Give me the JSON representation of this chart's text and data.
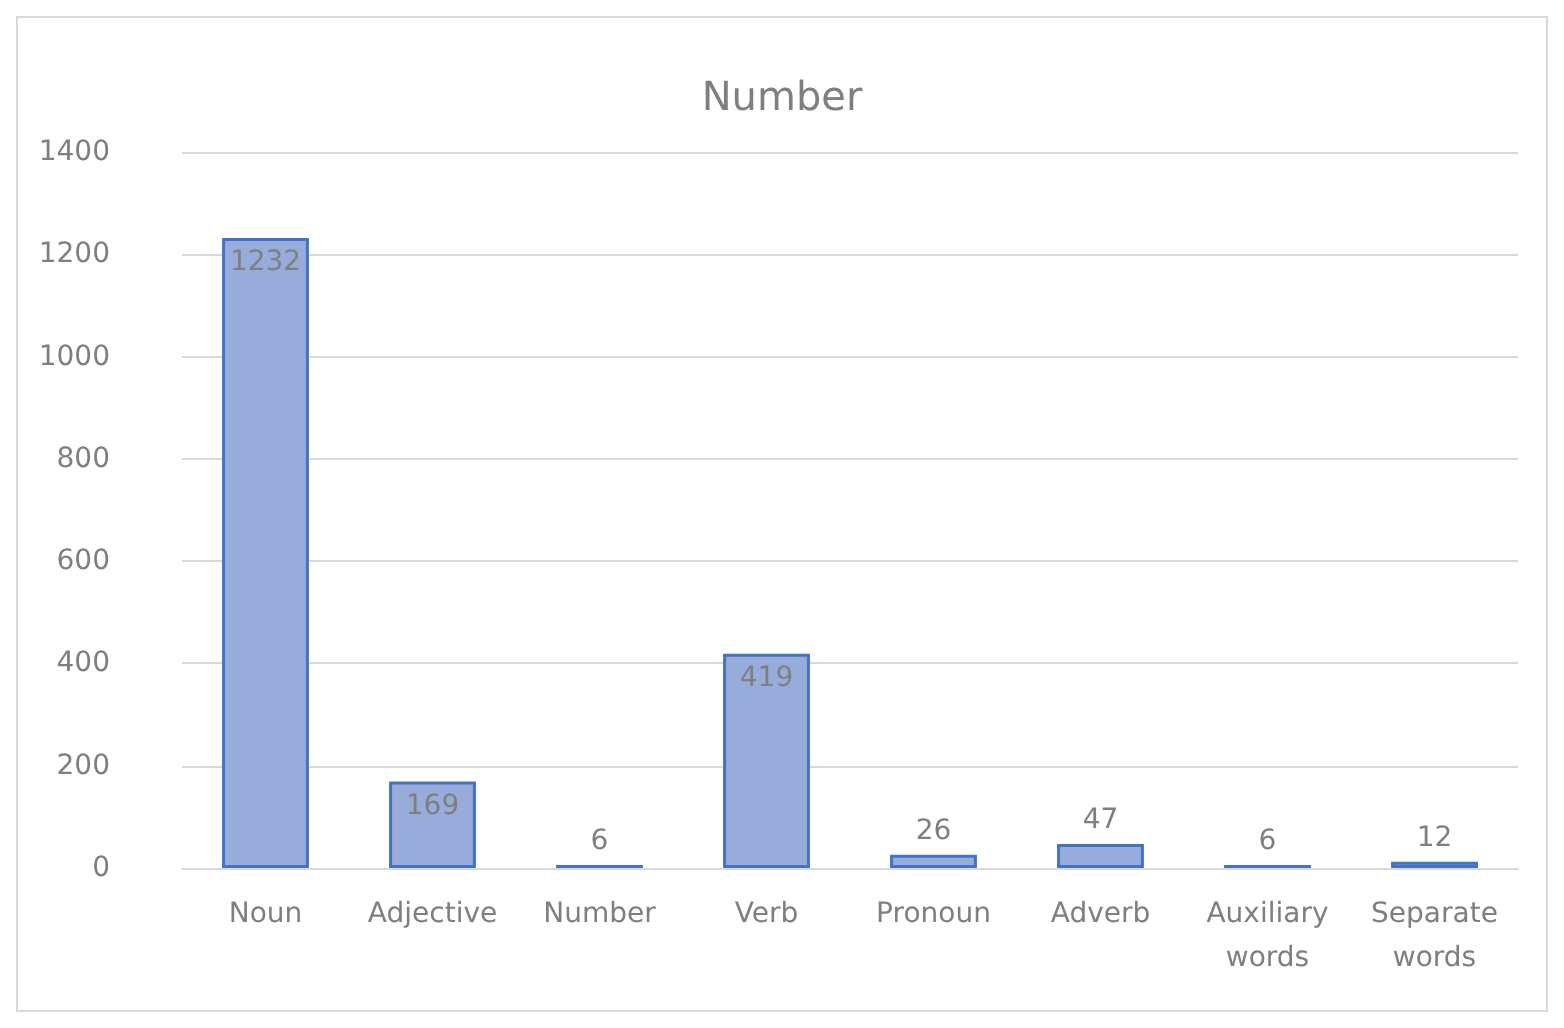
{
  "chart_data": {
    "type": "bar",
    "title": "Number",
    "categories": [
      "Noun",
      "Adjective",
      "Number",
      "Verb",
      "Pronoun",
      "Adverb",
      "Auxiliary\nwords",
      "Separate\nwords"
    ],
    "values": [
      1232,
      169,
      6,
      419,
      26,
      47,
      6,
      12
    ],
    "color": "#98acdc",
    "ylim": [
      0,
      1400
    ],
    "yticks": [
      0,
      200,
      400,
      600,
      800,
      1000,
      1200,
      1400
    ],
    "grid": "y",
    "data_labels": true,
    "legend": false
  }
}
